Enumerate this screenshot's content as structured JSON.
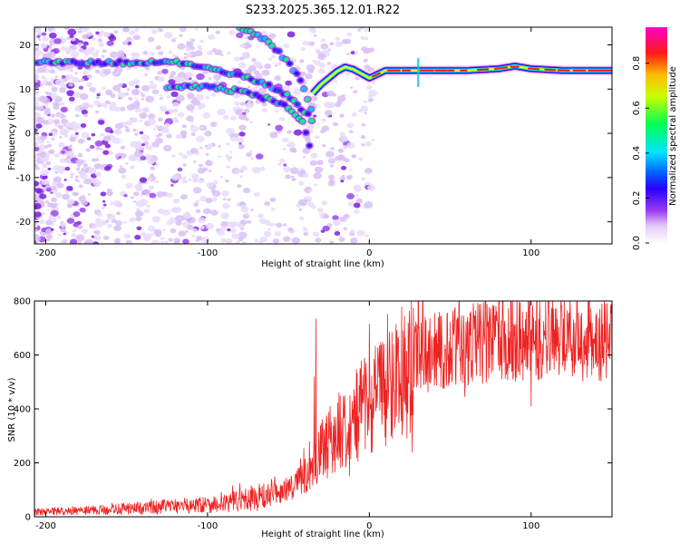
{
  "title": "S233.2025.365.12.01.R22",
  "colors": {
    "snr_line": "#ee2222",
    "frame": "#000000",
    "background": "#ffffff"
  },
  "colormap": [
    "#ffffff",
    "#d7b8f5",
    "#8a2be2",
    "#3a00ff",
    "#0000ff",
    "#00ccff",
    "#00ff66",
    "#ffff00",
    "#ff0000",
    "#ff00ff"
  ],
  "chart_data": [
    {
      "type": "heatmap",
      "name": "spectrogram",
      "xlabel": "Height of straight line (km)",
      "ylabel": "Frequency (Hz)",
      "xlim": [
        -207,
        150
      ],
      "ylim": [
        -25,
        24
      ],
      "xticks": [
        -200,
        -100,
        0,
        100
      ],
      "yticks": [
        -20,
        -10,
        0,
        10,
        20
      ],
      "colorbar": {
        "label": "Normalized spectral amplitude",
        "range": [
          0,
          0.96
        ],
        "ticks": [
          "0.0",
          "0.2",
          "0.4",
          "0.6",
          "0.8"
        ],
        "tick_values": [
          0,
          0.2,
          0.4,
          0.6,
          0.8
        ]
      },
      "tracks": [
        {
          "name": "main-track",
          "x": [
            -205,
            -190,
            -175,
            -160,
            -150,
            -140,
            -130,
            -120,
            -110,
            -100,
            -90,
            -80,
            -70,
            -60,
            -50,
            -42,
            -35
          ],
          "y": [
            16,
            16,
            16,
            16,
            16,
            16,
            16,
            16,
            15.5,
            15,
            14,
            13,
            12,
            10.5,
            8.5,
            5.5,
            3
          ]
        },
        {
          "name": "lower-branch",
          "x": [
            -125,
            -110,
            -100,
            -90,
            -80,
            -70,
            -60,
            -50,
            -42,
            -38,
            -35
          ],
          "y": [
            10.5,
            10.5,
            10.5,
            10,
            9.5,
            8.5,
            7.5,
            6,
            3,
            -1,
            -6
          ]
        },
        {
          "name": "upper-arc",
          "x": [
            -80,
            -70,
            -62,
            -55,
            -48,
            -42,
            -38,
            -35
          ],
          "y": [
            24,
            22.5,
            20.5,
            18,
            15,
            11.5,
            7.5,
            4
          ]
        },
        {
          "name": "stable-line",
          "x": [
            -35,
            -30,
            -25,
            -20,
            -15,
            -10,
            -5,
            0,
            10,
            30,
            60,
            80,
            90,
            100,
            120,
            150
          ],
          "y": [
            9,
            11,
            12.5,
            14,
            15,
            14.5,
            13.5,
            12.5,
            14.2,
            14.2,
            14.2,
            14.6,
            15.2,
            14.6,
            14.2,
            14.2
          ]
        }
      ]
    },
    {
      "type": "line",
      "name": "snr",
      "xlabel": "Height of straight line (km)",
      "ylabel": "SNR (10 * v/v)",
      "xlim": [
        -207,
        150
      ],
      "ylim": [
        0,
        800
      ],
      "xticks": [
        -200,
        -100,
        0,
        100
      ],
      "yticks": [
        0,
        200,
        400,
        600,
        800
      ],
      "trend": {
        "x": [
          -207,
          -180,
          -150,
          -120,
          -100,
          -80,
          -60,
          -50,
          -40,
          -35,
          -30,
          -20,
          -10,
          0,
          10,
          20,
          30,
          40,
          60,
          80,
          100,
          120,
          150
        ],
        "y": [
          18,
          22,
          30,
          40,
          45,
          60,
          80,
          105,
          150,
          190,
          240,
          310,
          370,
          420,
          480,
          530,
          580,
          610,
          640,
          655,
          660,
          658,
          655
        ]
      },
      "spikes": [
        {
          "x": -33,
          "y": 735
        },
        {
          "x": -34,
          "y": 520
        },
        {
          "x": -37,
          "y": 280
        },
        {
          "x": 80,
          "y": 800
        },
        {
          "x": 100,
          "y": 800
        },
        {
          "x": 100,
          "y": 410
        },
        {
          "x": 59,
          "y": 445
        },
        {
          "x": 120,
          "y": 735
        }
      ]
    }
  ]
}
